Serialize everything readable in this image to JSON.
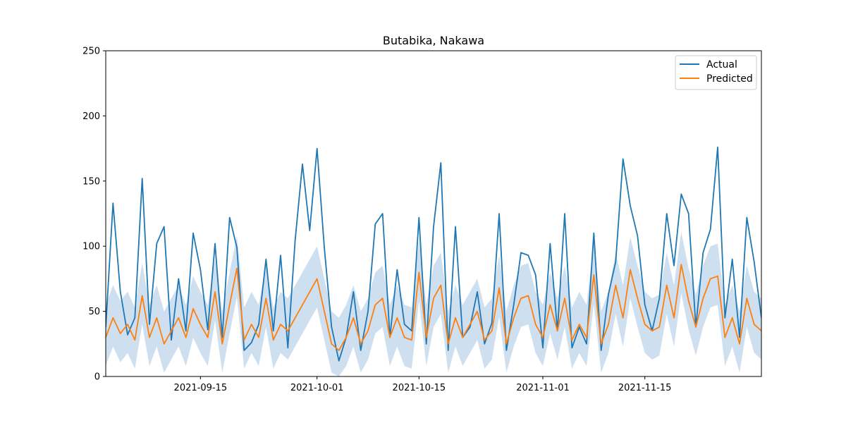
{
  "chart_data": {
    "type": "line",
    "title": "Butabika, Nakawa",
    "xlabel": "",
    "ylabel": "",
    "x_range": [
      "2021-09-02",
      "2021-12-01"
    ],
    "ylim": [
      0,
      250
    ],
    "y_ticks": [
      0,
      50,
      100,
      150,
      200,
      250
    ],
    "x_ticks": [
      "2021-09-15",
      "2021-10-01",
      "2021-10-15",
      "2021-11-01",
      "2021-11-15"
    ],
    "grid": false,
    "legend_placement": "top-right",
    "colors": {
      "actual": "#1f77b4",
      "predicted": "#ff7f0e",
      "band": "#b9d3e9"
    },
    "series": [
      {
        "name": "Actual",
        "x": [
          "2021-09-02",
          "2021-09-03",
          "2021-09-04",
          "2021-09-05",
          "2021-09-06",
          "2021-09-07",
          "2021-09-08",
          "2021-09-09",
          "2021-09-10",
          "2021-09-11",
          "2021-09-12",
          "2021-09-13",
          "2021-09-14",
          "2021-09-15",
          "2021-09-16",
          "2021-09-17",
          "2021-09-18",
          "2021-09-19",
          "2021-09-20",
          "2021-09-21",
          "2021-09-22",
          "2021-09-23",
          "2021-09-24",
          "2021-09-25",
          "2021-09-26",
          "2021-09-27",
          "2021-09-28",
          "2021-09-29",
          "2021-09-30",
          "2021-10-01",
          "2021-10-02",
          "2021-10-03",
          "2021-10-04",
          "2021-10-05",
          "2021-10-06",
          "2021-10-07",
          "2021-10-08",
          "2021-10-09",
          "2021-10-10",
          "2021-10-11",
          "2021-10-12",
          "2021-10-13",
          "2021-10-14",
          "2021-10-15",
          "2021-10-16",
          "2021-10-17",
          "2021-10-18",
          "2021-10-19",
          "2021-10-20",
          "2021-10-21",
          "2021-10-22",
          "2021-10-23",
          "2021-10-24",
          "2021-10-25",
          "2021-10-26",
          "2021-10-27",
          "2021-10-28",
          "2021-10-29",
          "2021-10-30",
          "2021-10-31",
          "2021-11-01",
          "2021-11-02",
          "2021-11-03",
          "2021-11-04",
          "2021-11-05",
          "2021-11-06",
          "2021-11-07",
          "2021-11-08",
          "2021-11-09",
          "2021-11-10",
          "2021-11-11",
          "2021-11-12",
          "2021-11-13",
          "2021-11-14",
          "2021-11-15",
          "2021-11-16",
          "2021-11-17",
          "2021-11-18",
          "2021-11-19",
          "2021-11-20",
          "2021-11-21",
          "2021-11-22",
          "2021-11-23",
          "2021-11-24",
          "2021-11-25",
          "2021-11-26",
          "2021-11-27",
          "2021-11-28",
          "2021-11-29",
          "2021-11-30",
          "2021-12-01"
        ],
        "values": [
          38,
          133,
          65,
          32,
          45,
          152,
          40,
          102,
          115,
          28,
          75,
          35,
          110,
          82,
          36,
          102,
          30,
          122,
          99,
          20,
          26,
          40,
          90,
          35,
          93,
          22,
          105,
          163,
          112,
          175,
          99,
          38,
          12,
          30,
          65,
          20,
          50,
          117,
          125,
          30,
          82,
          40,
          35,
          122,
          25,
          115,
          164,
          20,
          115,
          30,
          38,
          65,
          25,
          41,
          125,
          20,
          55,
          95,
          93,
          78,
          22,
          102,
          35,
          125,
          22,
          38,
          25,
          110,
          20,
          63,
          88,
          167,
          131,
          108,
          55,
          35,
          60,
          125,
          85,
          140,
          125,
          38,
          95,
          113,
          176,
          45,
          90,
          30,
          122,
          88,
          45
        ]
      },
      {
        "name": "Predicted",
        "x": [
          "2021-09-02",
          "2021-09-03",
          "2021-09-04",
          "2021-09-05",
          "2021-09-06",
          "2021-09-07",
          "2021-09-08",
          "2021-09-09",
          "2021-09-10",
          "2021-09-11",
          "2021-09-12",
          "2021-09-13",
          "2021-09-14",
          "2021-09-15",
          "2021-09-16",
          "2021-09-17",
          "2021-09-18",
          "2021-09-19",
          "2021-09-20",
          "2021-09-21",
          "2021-09-22",
          "2021-09-23",
          "2021-09-24",
          "2021-09-25",
          "2021-09-26",
          "2021-09-27",
          "2021-09-28",
          "2021-09-29",
          "2021-09-30",
          "2021-10-01",
          "2021-10-02",
          "2021-10-03",
          "2021-10-04",
          "2021-10-05",
          "2021-10-06",
          "2021-10-07",
          "2021-10-08",
          "2021-10-09",
          "2021-10-10",
          "2021-10-11",
          "2021-10-12",
          "2021-10-13",
          "2021-10-14",
          "2021-10-15",
          "2021-10-16",
          "2021-10-17",
          "2021-10-18",
          "2021-10-19",
          "2021-10-20",
          "2021-10-21",
          "2021-10-22",
          "2021-10-23",
          "2021-10-24",
          "2021-10-25",
          "2021-10-26",
          "2021-10-27",
          "2021-10-28",
          "2021-10-29",
          "2021-10-30",
          "2021-10-31",
          "2021-11-01",
          "2021-11-02",
          "2021-11-03",
          "2021-11-04",
          "2021-11-05",
          "2021-11-06",
          "2021-11-07",
          "2021-11-08",
          "2021-11-09",
          "2021-11-10",
          "2021-11-11",
          "2021-11-12",
          "2021-11-13",
          "2021-11-14",
          "2021-11-15",
          "2021-11-16",
          "2021-11-17",
          "2021-11-18",
          "2021-11-19",
          "2021-11-20",
          "2021-11-21",
          "2021-11-22",
          "2021-11-23",
          "2021-11-24",
          "2021-11-25",
          "2021-11-26",
          "2021-11-27",
          "2021-11-28",
          "2021-11-29",
          "2021-11-30",
          "2021-12-01"
        ],
        "values": [
          30,
          45,
          33,
          40,
          28,
          62,
          30,
          45,
          25,
          35,
          45,
          30,
          52,
          40,
          30,
          65,
          25,
          55,
          83,
          28,
          40,
          30,
          60,
          28,
          40,
          35,
          45,
          55,
          65,
          75,
          50,
          25,
          20,
          30,
          45,
          25,
          35,
          55,
          60,
          30,
          45,
          30,
          28,
          80,
          30,
          60,
          70,
          25,
          45,
          30,
          40,
          50,
          28,
          35,
          68,
          25,
          45,
          60,
          62,
          40,
          30,
          55,
          35,
          60,
          28,
          40,
          30,
          78,
          25,
          40,
          70,
          45,
          82,
          60,
          40,
          35,
          38,
          70,
          45,
          86,
          58,
          38,
          60,
          75,
          77,
          30,
          45,
          25,
          60,
          40,
          35
        ]
      }
    ]
  },
  "legend": {
    "items": [
      {
        "label": "Actual",
        "color": "#1f77b4"
      },
      {
        "label": "Predicted",
        "color": "#ff7f0e"
      }
    ]
  }
}
